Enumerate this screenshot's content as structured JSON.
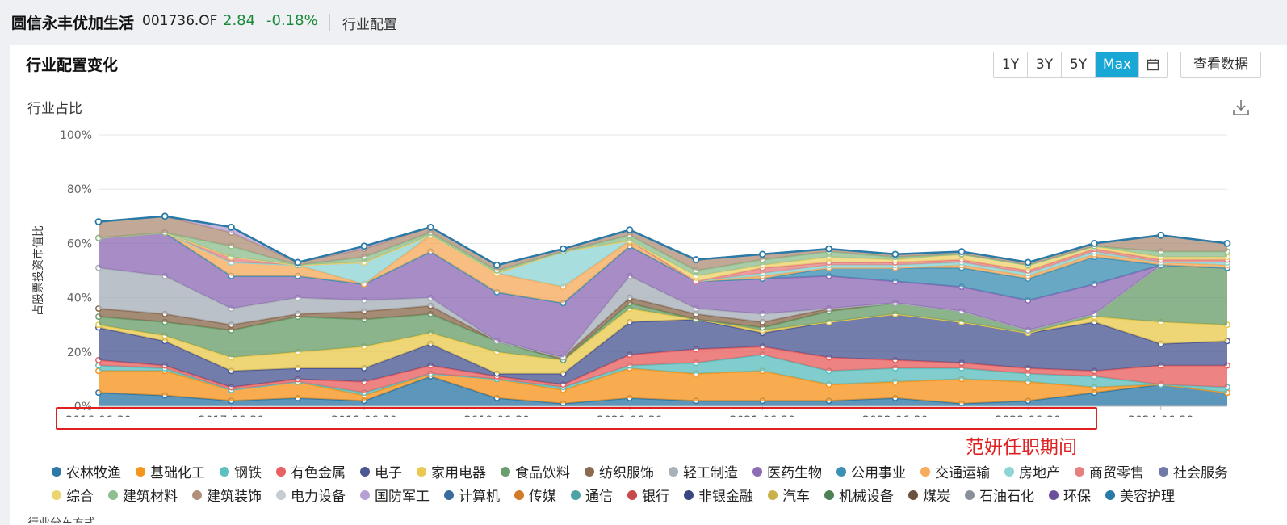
{
  "header": {
    "fund_name": "圆信永丰优加生活",
    "fund_code": "001736.OF",
    "nav": "2.84",
    "change": "-0.18%",
    "section": "行业配置"
  },
  "card": {
    "title": "行业配置变化",
    "range_buttons": [
      "1Y",
      "3Y",
      "5Y",
      "Max"
    ],
    "active_range": "Max",
    "view_data_label": "查看数据",
    "subtitle": "行业占比",
    "annotation": "范妍任职期间",
    "cutoff_text": "行业分布方式"
  },
  "chart_data": {
    "type": "area",
    "stacked": true,
    "ylabel": "占股票投资市值比",
    "ylim": [
      0,
      100
    ],
    "yticks": [
      "0%",
      "20%",
      "40%",
      "60%",
      "80%",
      "100%"
    ],
    "x": [
      "2016-06-30",
      "2016-12-31",
      "2017-06-30",
      "2017-12-31",
      "2018-06-30",
      "2018-12-31",
      "2019-06-30",
      "2019-12-31",
      "2020-06-30",
      "2020-12-31",
      "2021-06-30",
      "2021-12-31",
      "2022-06-30",
      "2022-12-31",
      "2023-06-30",
      "2023-12-31",
      "2024-06-30",
      "2024-12-31"
    ],
    "xticks": [
      "2016-06-30",
      "2017-06-30",
      "2018-06-30",
      "2019-06-30",
      "2020-06-30",
      "2021-06-30",
      "2022-06-30",
      "2023-06-30",
      "2024-06-30"
    ],
    "series": [
      {
        "name": "农林牧渔",
        "color": "#2e78a8",
        "values": [
          5,
          4,
          2,
          3,
          2,
          11,
          3,
          1,
          3,
          2,
          2,
          2,
          3,
          1,
          2,
          5,
          8,
          5
        ]
      },
      {
        "name": "基础化工",
        "color": "#f7941d",
        "values": [
          8,
          9,
          4,
          6,
          2,
          1,
          7,
          5,
          11,
          10,
          11,
          6,
          6,
          9,
          7,
          2,
          0,
          0
        ]
      },
      {
        "name": "钢铁",
        "color": "#5dbfbf",
        "values": [
          2,
          1,
          0,
          0,
          1,
          0,
          0,
          1,
          1,
          4,
          6,
          5,
          5,
          4,
          3,
          4,
          0,
          2
        ]
      },
      {
        "name": "有色金属",
        "color": "#e8605f",
        "values": [
          2,
          1,
          1,
          1,
          4,
          3,
          1,
          1,
          4,
          5,
          3,
          5,
          3,
          2,
          2,
          2,
          7,
          8
        ]
      },
      {
        "name": "电子",
        "color": "#4b5893",
        "values": [
          12,
          9,
          6,
          4,
          5,
          8,
          1,
          4,
          12,
          11,
          5,
          13,
          17,
          15,
          13,
          18,
          8,
          9
        ]
      },
      {
        "name": "家用电器",
        "color": "#e9c94f",
        "values": [
          1,
          2,
          5,
          6,
          8,
          4,
          8,
          5,
          5,
          0,
          1,
          0,
          0,
          0,
          0,
          2,
          8,
          6
        ]
      },
      {
        "name": "食品饮料",
        "color": "#6a9e6c",
        "values": [
          3,
          5,
          10,
          13,
          10,
          7,
          4,
          0,
          2,
          0,
          1,
          4,
          4,
          4,
          1,
          1,
          21,
          21
        ]
      },
      {
        "name": "纺织服饰",
        "color": "#8b6a4f",
        "values": [
          3,
          3,
          2,
          1,
          3,
          3,
          0,
          1,
          2,
          2,
          2,
          1,
          0,
          0,
          0,
          0,
          0,
          0
        ]
      },
      {
        "name": "轻工制造",
        "color": "#a8b0b8",
        "values": [
          15,
          14,
          6,
          6,
          4,
          3,
          0,
          0,
          8,
          2,
          3,
          0,
          0,
          0,
          0,
          0,
          0,
          0
        ]
      },
      {
        "name": "医药生物",
        "color": "#8e6bb5",
        "values": [
          11,
          16,
          12,
          8,
          6,
          17,
          18,
          20,
          11,
          10,
          13,
          12,
          8,
          9,
          11,
          11,
          0,
          0
        ]
      },
      {
        "name": "公用事业",
        "color": "#3d90b5",
        "values": [
          0,
          0,
          0,
          0,
          0,
          0,
          0,
          0,
          0,
          0,
          0,
          3,
          5,
          7,
          8,
          10,
          0,
          0
        ]
      },
      {
        "name": "交通运输",
        "color": "#f6ab5d",
        "values": [
          0,
          0,
          5,
          4,
          0,
          6,
          7,
          6,
          2,
          0,
          1,
          0,
          0,
          1,
          1,
          1,
          1,
          1
        ]
      },
      {
        "name": "房地产",
        "color": "#8fd5d5",
        "values": [
          0,
          0,
          0,
          0,
          8,
          0,
          0,
          13,
          0,
          0,
          1,
          1,
          1,
          1,
          1,
          1,
          0,
          1
        ]
      },
      {
        "name": "商贸零售",
        "color": "#e68080",
        "values": [
          0,
          0,
          2,
          0,
          0,
          0,
          0,
          0,
          0,
          0,
          2,
          1,
          1,
          1,
          1,
          1,
          1,
          1
        ]
      },
      {
        "name": "社会服务",
        "color": "#6f7aa8",
        "values": [
          0,
          0,
          0,
          0,
          0,
          0,
          0,
          0,
          0,
          0,
          0,
          0,
          0,
          0,
          0,
          0,
          0,
          0
        ]
      },
      {
        "name": "综合",
        "color": "#ecd46f",
        "values": [
          0,
          0,
          0,
          0,
          0,
          0,
          0,
          0,
          0,
          2,
          1,
          2,
          1,
          2,
          2,
          1,
          1,
          1
        ]
      },
      {
        "name": "建筑材料",
        "color": "#8fbf8f",
        "values": [
          0,
          0,
          4,
          0,
          2,
          1,
          1,
          0,
          2,
          2,
          2,
          2,
          1,
          0,
          0,
          0,
          2,
          2
        ]
      },
      {
        "name": "建筑装饰",
        "color": "#b0907a",
        "values": [
          6,
          6,
          5,
          1,
          3,
          2,
          2,
          1,
          2,
          4,
          2,
          1,
          1,
          1,
          1,
          1,
          6,
          3
        ]
      },
      {
        "name": "电力设备",
        "color": "#c7ccd3",
        "values": [
          0,
          0,
          0,
          0,
          0,
          0,
          0,
          0,
          0,
          0,
          0,
          0,
          0,
          0,
          0,
          0,
          0,
          0
        ]
      },
      {
        "name": "国防军工",
        "color": "#b9a0d3",
        "values": [
          0,
          0,
          2,
          0,
          1,
          0,
          0,
          0,
          0,
          0,
          0,
          0,
          0,
          0,
          0,
          0,
          0,
          0
        ]
      },
      {
        "name": "计算机",
        "color": "#3b6b9a",
        "values": [
          0,
          0,
          0,
          0,
          0,
          0,
          0,
          0,
          0,
          0,
          0,
          0,
          0,
          0,
          0,
          0,
          0,
          0
        ]
      },
      {
        "name": "传媒",
        "color": "#d07a2a",
        "values": [
          0,
          0,
          0,
          0,
          0,
          0,
          0,
          0,
          0,
          0,
          0,
          0,
          0,
          0,
          0,
          0,
          0,
          0
        ]
      },
      {
        "name": "通信",
        "color": "#4da3a3",
        "values": [
          0,
          0,
          0,
          0,
          0,
          0,
          0,
          0,
          0,
          0,
          0,
          0,
          0,
          0,
          0,
          0,
          0,
          0
        ]
      },
      {
        "name": "银行",
        "color": "#c74b4b",
        "values": [
          0,
          0,
          0,
          0,
          0,
          0,
          0,
          0,
          0,
          0,
          0,
          0,
          0,
          0,
          0,
          0,
          0,
          0
        ]
      },
      {
        "name": "非银金融",
        "color": "#3a4680",
        "values": [
          0,
          0,
          0,
          0,
          0,
          0,
          0,
          0,
          0,
          0,
          0,
          0,
          0,
          0,
          0,
          0,
          0,
          0
        ]
      },
      {
        "name": "汽车",
        "color": "#c9b04a",
        "values": [
          0,
          0,
          0,
          0,
          0,
          0,
          0,
          0,
          0,
          0,
          0,
          0,
          0,
          0,
          0,
          0,
          0,
          0
        ]
      },
      {
        "name": "机械设备",
        "color": "#4f7f55",
        "values": [
          0,
          0,
          0,
          0,
          0,
          0,
          0,
          0,
          0,
          0,
          0,
          0,
          0,
          0,
          0,
          0,
          0,
          0
        ]
      },
      {
        "name": "煤炭",
        "color": "#6b5240",
        "values": [
          0,
          0,
          0,
          0,
          0,
          0,
          0,
          0,
          0,
          0,
          0,
          0,
          0,
          0,
          0,
          0,
          0,
          0
        ]
      },
      {
        "name": "石油石化",
        "color": "#8a9099",
        "values": [
          0,
          0,
          0,
          0,
          0,
          0,
          0,
          0,
          0,
          0,
          0,
          0,
          0,
          0,
          0,
          0,
          0,
          0
        ]
      },
      {
        "name": "环保",
        "color": "#6a4f9a",
        "values": [
          0,
          0,
          0,
          0,
          0,
          0,
          0,
          0,
          0,
          0,
          0,
          0,
          0,
          0,
          0,
          0,
          0,
          0
        ]
      },
      {
        "name": "美容护理",
        "color": "#2a7aa8",
        "values": [
          0,
          0,
          0,
          0,
          0,
          0,
          0,
          0,
          0,
          0,
          0,
          0,
          0,
          0,
          0,
          0,
          0,
          0
        ]
      }
    ],
    "legend_placement": "bottom",
    "grid": true
  }
}
